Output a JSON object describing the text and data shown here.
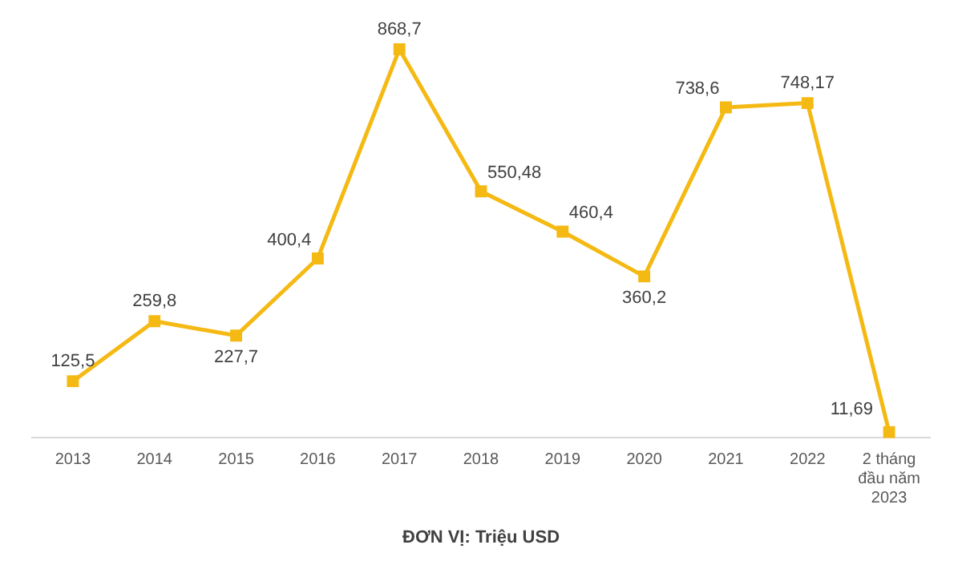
{
  "chart_data": {
    "type": "line",
    "xlabel": "ĐƠN VỊ: Triệu USD",
    "categories": [
      "2013",
      "2014",
      "2015",
      "2016",
      "2017",
      "2018",
      "2019",
      "2020",
      "2021",
      "2022",
      "2 tháng đầu năm 2023"
    ],
    "series": [
      {
        "color": "#f5b914",
        "values": [
          125.5,
          259.8,
          227.7,
          400.4,
          868.7,
          550.48,
          460.4,
          360.2,
          738.6,
          748.17,
          11.69
        ],
        "value_labels": [
          "125,5",
          "259,8",
          "227,7",
          "400,4",
          "868,7",
          "550,48",
          "460,4",
          "360,2",
          "738,6",
          "748,17",
          "11,69"
        ]
      }
    ],
    "marker": "square",
    "line_style": "solid",
    "grid": false,
    "legend": false
  }
}
